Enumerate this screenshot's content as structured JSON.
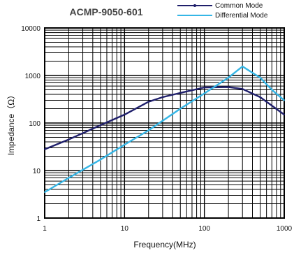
{
  "chart_data": {
    "type": "line",
    "title": "ACMP-9050-601",
    "xlabel": "Frequency(MHz)",
    "ylabel": "Impedance（Ω）",
    "x_scale": "log",
    "y_scale": "log",
    "xlim": [
      1,
      1000
    ],
    "ylim": [
      1,
      10000
    ],
    "x_ticks": [
      "1",
      "10",
      "100",
      "1000"
    ],
    "y_ticks": [
      "1",
      "10",
      "100",
      "1000",
      "10000"
    ],
    "grid": true,
    "legend_position": "top-right",
    "series": [
      {
        "name": "Common Mode",
        "color": "#1f1f6b",
        "x": [
          1,
          2,
          5,
          10,
          20,
          30,
          50,
          100,
          200,
          300,
          500,
          1000
        ],
        "y": [
          28,
          45,
          90,
          150,
          280,
          350,
          430,
          560,
          570,
          520,
          350,
          150
        ]
      },
      {
        "name": "Differential Mode",
        "color": "#35b6e6",
        "x": [
          1,
          2,
          5,
          10,
          20,
          50,
          100,
          200,
          300,
          500,
          700,
          1000
        ],
        "y": [
          3.5,
          7,
          17,
          35,
          70,
          200,
          420,
          900,
          1550,
          900,
          500,
          300
        ]
      }
    ]
  }
}
